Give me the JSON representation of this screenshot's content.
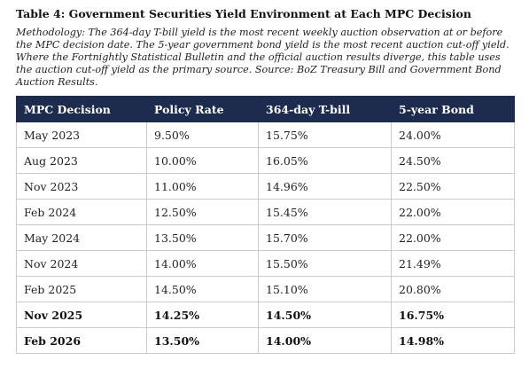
{
  "title": "Table 4: Government Securities Yield Environment at Each MPC Decision",
  "methodology": "Methodology: The 364-day T-bill yield is the most recent weekly auction observation at or before the MPC decision date. The 5-year government bond yield is the most recent auction cut-off yield. Where the Fortnightly Statistical Bulletin and the official auction results diverge, this table uses the auction cut-off yield as the primary source. Source: BoZ Treasury Bill and Government Bond Auction Results.",
  "table": {
    "headers": [
      "MPC Decision",
      "Policy Rate",
      "364-day T-bill",
      "5-year Bond"
    ],
    "rows": [
      {
        "cells": [
          "May 2023",
          "9.50%",
          "15.75%",
          "24.00%"
        ],
        "bold": false
      },
      {
        "cells": [
          "Aug 2023",
          "10.00%",
          "16.05%",
          "24.50%"
        ],
        "bold": false
      },
      {
        "cells": [
          "Nov 2023",
          "11.00%",
          "14.96%",
          "22.50%"
        ],
        "bold": false
      },
      {
        "cells": [
          "Feb 2024",
          "12.50%",
          "15.45%",
          "22.00%"
        ],
        "bold": false
      },
      {
        "cells": [
          "May 2024",
          "13.50%",
          "15.70%",
          "22.00%"
        ],
        "bold": false
      },
      {
        "cells": [
          "Nov 2024",
          "14.00%",
          "15.50%",
          "21.49%"
        ],
        "bold": false
      },
      {
        "cells": [
          "Feb 2025",
          "14.50%",
          "15.10%",
          "20.80%"
        ],
        "bold": false
      },
      {
        "cells": [
          "Nov 2025",
          "14.25%",
          "14.50%",
          "16.75%"
        ],
        "bold": true
      },
      {
        "cells": [
          "Feb 2026",
          "13.50%",
          "14.00%",
          "14.98%"
        ],
        "bold": true
      }
    ]
  },
  "colors": {
    "header_background": "#1d2b4f",
    "header_text": "#ffffff",
    "grid_line": "#c8cbd1"
  }
}
